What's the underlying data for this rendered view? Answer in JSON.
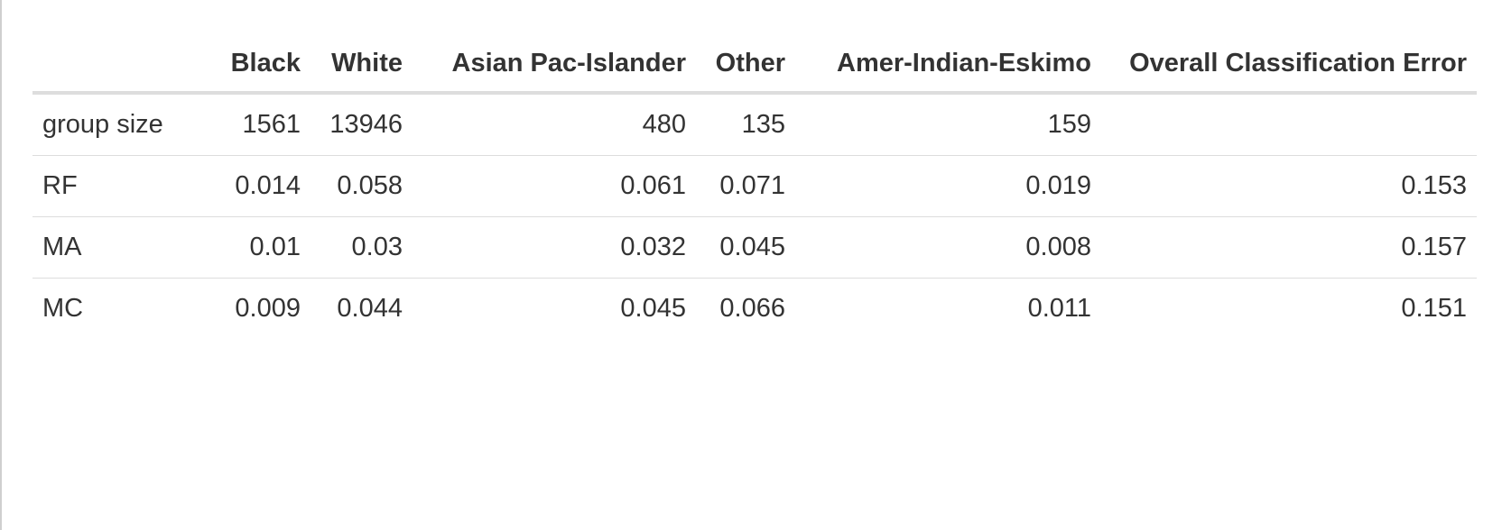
{
  "table": {
    "columns": [
      "",
      "Black",
      "White",
      "Asian Pac-Islander",
      "Other",
      "Amer-Indian-Eskimo",
      "Overall Classification Error"
    ],
    "rows": [
      {
        "label": "group size",
        "values": [
          "1561",
          "13946",
          "480",
          "135",
          "159",
          ""
        ]
      },
      {
        "label": "RF",
        "values": [
          "0.014",
          "0.058",
          "0.061",
          "0.071",
          "0.019",
          "0.153"
        ]
      },
      {
        "label": "MA",
        "values": [
          "0.01",
          "0.03",
          "0.032",
          "0.045",
          "0.008",
          "0.157"
        ]
      },
      {
        "label": "MC",
        "values": [
          "0.009",
          "0.044",
          "0.045",
          "0.066",
          "0.011",
          "0.151"
        ]
      }
    ]
  },
  "colors": {
    "text": "#333333",
    "header_rule": "#dddddd",
    "row_rule": "#dddddd",
    "background": "#ffffff"
  }
}
